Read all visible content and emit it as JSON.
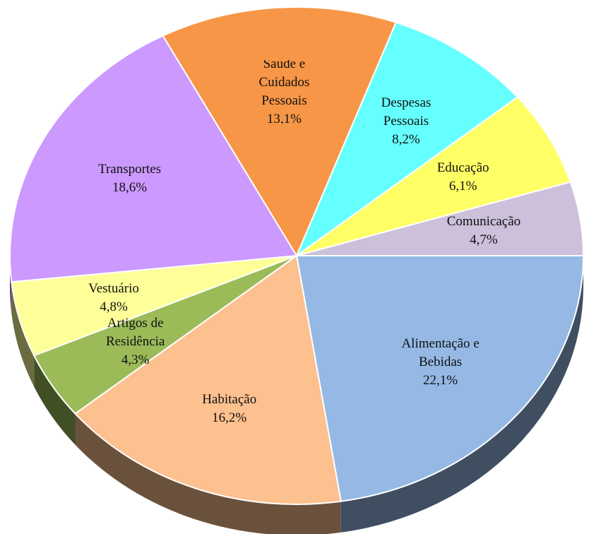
{
  "chart_data": {
    "type": "pie",
    "categories": [
      "Alimentação e Bebidas",
      "Habitação",
      "Artigos de Residência",
      "Vestuário",
      "Transportes",
      "Saúde e Cuidados Pessoais",
      "Despesas Pessoais",
      "Educação",
      "Comunicação"
    ],
    "values": [
      22.1,
      16.2,
      4.3,
      4.8,
      18.6,
      13.1,
      8.2,
      6.1,
      4.7
    ],
    "value_labels": [
      "22,1%",
      "16,2%",
      "4,3%",
      "4,8%",
      "18,6%",
      "13,1%",
      "8,2%",
      "6,1%",
      "4,7%"
    ],
    "colors": [
      "#95b9e4",
      "#fdc08f",
      "#9bbb59",
      "#ffff99",
      "#cc99ff",
      "#f79646",
      "#66ffff",
      "#ffff66",
      "#ccc0da"
    ]
  }
}
